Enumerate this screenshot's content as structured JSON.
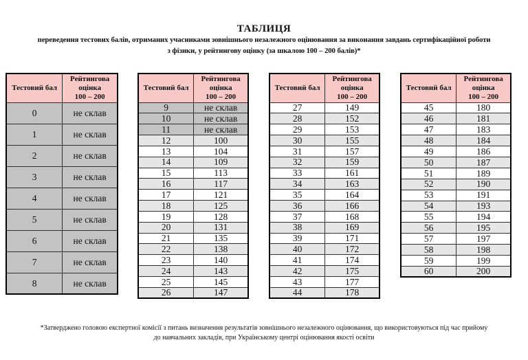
{
  "page": {
    "title": "ТАБЛИЦЯ",
    "subtitle_lines": [
      "переведення тестових балів, отриманих учасниками зовнішнього незалежного оцінювання за виконання завдань сертифікаційної роботи",
      "з фізики, у рейтингову оцінку (за шкалою 100 – 200 балів)*"
    ],
    "footnote_lines": [
      "*Затверджено головою експертної комісії з питань визначення результатів зовнішнього незалежного оцінювання, що використовуються під час прийому",
      "до навчальних закладів, при Українському центрі оцінювання якості освіти"
    ]
  },
  "table_header": {
    "score_label": "Тестовий бал",
    "rating_label_lines": [
      "Рейтингова",
      "оцінка",
      "100 – 200"
    ]
  },
  "fail_text": "не склав",
  "colors": {
    "header_bg": "#f9c9c8",
    "fail_row_bg": "#c3c3c3",
    "shaded_row_bg": "#e6e6e6",
    "plain_row_bg": "#ffffff",
    "border_outer": "#000000",
    "border_inner": "#2e2e2e"
  },
  "tables": [
    {
      "rows": [
        {
          "score": "0",
          "rating": "не склав"
        },
        {
          "score": "1",
          "rating": "не склав"
        },
        {
          "score": "2",
          "rating": "не склав"
        },
        {
          "score": "3",
          "rating": "не склав"
        },
        {
          "score": "4",
          "rating": "не склав"
        },
        {
          "score": "5",
          "rating": "не склав"
        },
        {
          "score": "6",
          "rating": "не склав"
        },
        {
          "score": "7",
          "rating": "не склав"
        },
        {
          "score": "8",
          "rating": "не склав"
        }
      ]
    },
    {
      "rows": [
        {
          "score": "9",
          "rating": "не склав"
        },
        {
          "score": "10",
          "rating": "не склав"
        },
        {
          "score": "11",
          "rating": "не склав"
        },
        {
          "score": "12",
          "rating": "100"
        },
        {
          "score": "13",
          "rating": "104"
        },
        {
          "score": "14",
          "rating": "109"
        },
        {
          "score": "15",
          "rating": "113"
        },
        {
          "score": "16",
          "rating": "117"
        },
        {
          "score": "17",
          "rating": "121"
        },
        {
          "score": "18",
          "rating": "125"
        },
        {
          "score": "19",
          "rating": "128"
        },
        {
          "score": "20",
          "rating": "131"
        },
        {
          "score": "21",
          "rating": "135"
        },
        {
          "score": "22",
          "rating": "138"
        },
        {
          "score": "23",
          "rating": "140"
        },
        {
          "score": "24",
          "rating": "143"
        },
        {
          "score": "25",
          "rating": "145"
        },
        {
          "score": "26",
          "rating": "147"
        }
      ]
    },
    {
      "rows": [
        {
          "score": "27",
          "rating": "149"
        },
        {
          "score": "28",
          "rating": "152"
        },
        {
          "score": "29",
          "rating": "153"
        },
        {
          "score": "30",
          "rating": "155"
        },
        {
          "score": "31",
          "rating": "157"
        },
        {
          "score": "32",
          "rating": "159"
        },
        {
          "score": "33",
          "rating": "161"
        },
        {
          "score": "34",
          "rating": "163"
        },
        {
          "score": "35",
          "rating": "164"
        },
        {
          "score": "36",
          "rating": "166"
        },
        {
          "score": "37",
          "rating": "168"
        },
        {
          "score": "38",
          "rating": "169"
        },
        {
          "score": "39",
          "rating": "171"
        },
        {
          "score": "40",
          "rating": "172"
        },
        {
          "score": "41",
          "rating": "174"
        },
        {
          "score": "42",
          "rating": "175"
        },
        {
          "score": "43",
          "rating": "177"
        },
        {
          "score": "44",
          "rating": "178"
        }
      ]
    },
    {
      "rows": [
        {
          "score": "45",
          "rating": "180"
        },
        {
          "score": "46",
          "rating": "181"
        },
        {
          "score": "47",
          "rating": "183"
        },
        {
          "score": "48",
          "rating": "184"
        },
        {
          "score": "49",
          "rating": "186"
        },
        {
          "score": "50",
          "rating": "187"
        },
        {
          "score": "51",
          "rating": "189"
        },
        {
          "score": "52",
          "rating": "190"
        },
        {
          "score": "53",
          "rating": "191"
        },
        {
          "score": "54",
          "rating": "193"
        },
        {
          "score": "55",
          "rating": "194"
        },
        {
          "score": "56",
          "rating": "195"
        },
        {
          "score": "57",
          "rating": "197"
        },
        {
          "score": "58",
          "rating": "198"
        },
        {
          "score": "59",
          "rating": "199"
        },
        {
          "score": "60",
          "rating": "200"
        }
      ]
    }
  ]
}
